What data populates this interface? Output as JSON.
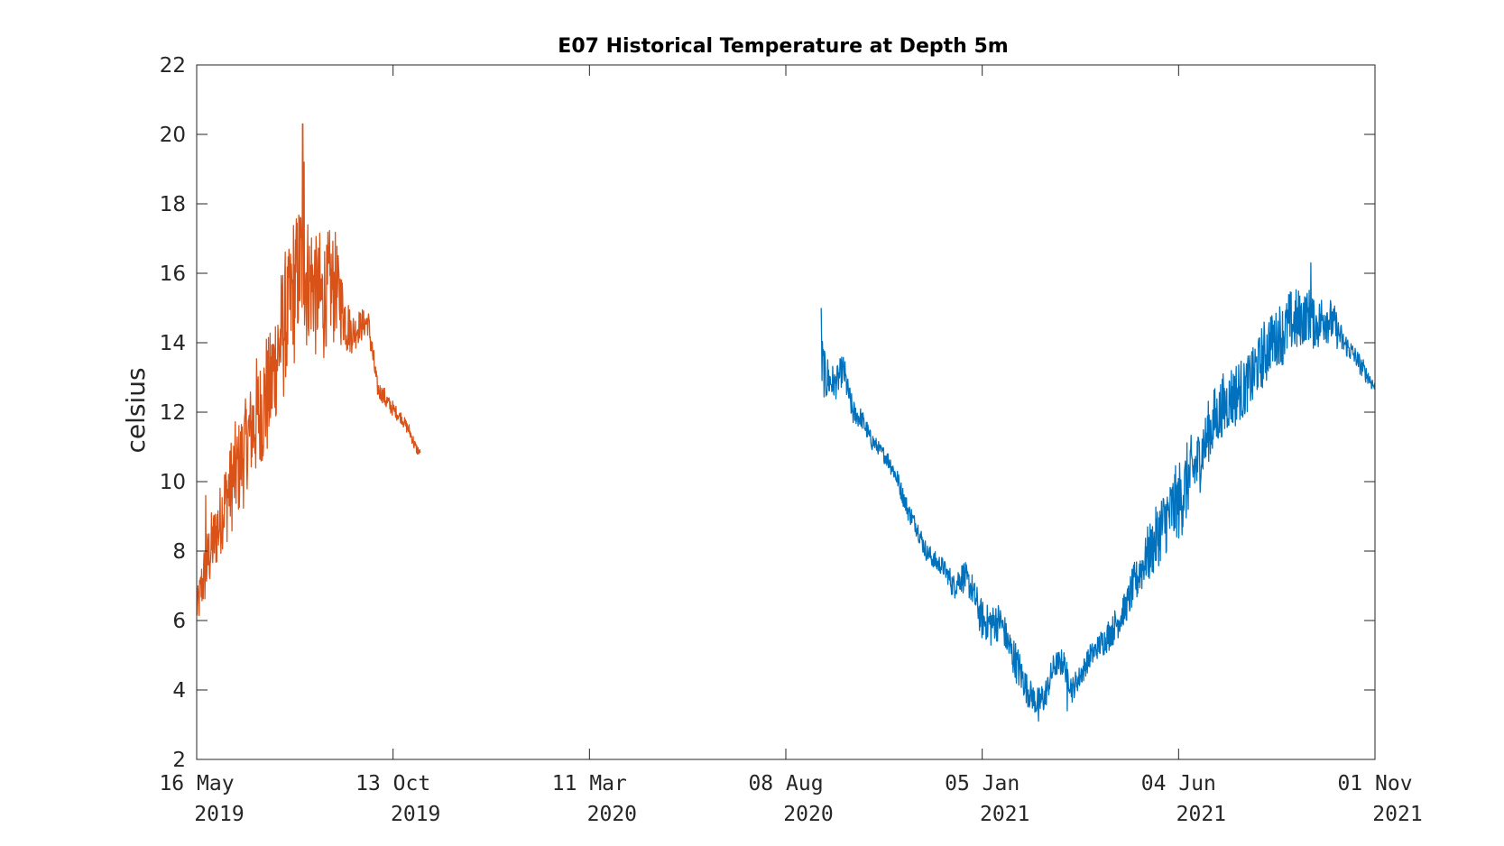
{
  "chart_data": {
    "type": "line",
    "title": "E07 Historical Temperature at Depth 5m",
    "xlabel": "",
    "ylabel": "celsius",
    "ylim": [
      2,
      22
    ],
    "yticks": [
      2,
      4,
      6,
      8,
      10,
      12,
      14,
      16,
      18,
      20,
      22
    ],
    "xlim": [
      "2019-05-16",
      "2021-11-01"
    ],
    "xticks": [
      {
        "date": "2019-05-16",
        "label_day": "16 May",
        "label_year": "2019"
      },
      {
        "date": "2019-10-13",
        "label_day": "13 Oct",
        "label_year": "2019"
      },
      {
        "date": "2020-03-11",
        "label_day": "11 Mar",
        "label_year": "2020"
      },
      {
        "date": "2020-08-08",
        "label_day": "08 Aug",
        "label_year": "2020"
      },
      {
        "date": "2021-01-05",
        "label_day": "05 Jan",
        "label_year": "2021"
      },
      {
        "date": "2021-06-04",
        "label_day": "04 Jun",
        "label_year": "2021"
      },
      {
        "date": "2021-11-01",
        "label_day": "01 Nov",
        "label_year": "2021"
      }
    ],
    "grid": false,
    "series": [
      {
        "color": "#D95319",
        "points": [
          [
            "2019-05-16",
            6.3
          ],
          [
            "2019-05-20",
            7.0
          ],
          [
            "2019-05-25",
            7.8
          ],
          [
            "2019-06-01",
            8.6
          ],
          [
            "2019-06-08",
            9.6
          ],
          [
            "2019-06-15",
            10.3
          ],
          [
            "2019-06-22",
            11.0
          ],
          [
            "2019-06-29",
            11.7
          ],
          [
            "2019-07-06",
            12.2
          ],
          [
            "2019-07-13",
            13.0
          ],
          [
            "2019-07-20",
            14.2
          ],
          [
            "2019-07-27",
            15.2
          ],
          [
            "2019-08-01",
            16.0
          ],
          [
            "2019-08-05",
            16.3
          ],
          [
            "2019-08-10",
            15.8
          ],
          [
            "2019-08-15",
            15.5
          ],
          [
            "2019-08-20",
            15.2
          ],
          [
            "2019-08-25",
            15.5
          ],
          [
            "2019-08-30",
            15.6
          ],
          [
            "2019-09-03",
            15.2
          ],
          [
            "2019-09-07",
            14.6
          ],
          [
            "2019-09-12",
            14.3
          ],
          [
            "2019-09-18",
            14.5
          ],
          [
            "2019-09-24",
            14.6
          ],
          [
            "2019-09-28",
            13.5
          ],
          [
            "2019-10-01",
            12.7
          ],
          [
            "2019-10-05",
            12.5
          ],
          [
            "2019-10-10",
            12.2
          ],
          [
            "2019-10-15",
            12.0
          ],
          [
            "2019-10-20",
            11.8
          ],
          [
            "2019-10-25",
            11.5
          ],
          [
            "2019-10-30",
            11.0
          ],
          [
            "2019-11-03",
            10.8
          ]
        ],
        "noise": [
          0.6,
          0.9,
          1.0,
          1.3,
          1.4,
          1.5,
          1.7,
          1.8,
          1.9,
          2.0,
          2.1,
          2.2,
          2.4,
          2.6,
          2.2,
          2.0,
          1.9,
          1.8,
          1.6,
          1.3,
          1.0,
          0.6,
          0.5,
          0.5,
          0.4,
          0.3,
          0.3,
          0.3,
          0.2,
          0.2,
          0.2,
          0.2,
          0.1
        ],
        "extremes": [
          [
            "2019-08-05",
            20.3
          ],
          [
            "2019-08-06",
            19.2
          ],
          [
            "2019-05-23",
            9.6
          ],
          [
            "2019-05-16",
            6.2
          ]
        ]
      },
      {
        "color": "#0072BD",
        "points": [
          [
            "2020-09-04",
            13.5
          ],
          [
            "2020-09-07",
            13.0
          ],
          [
            "2020-09-14",
            12.8
          ],
          [
            "2020-09-21",
            13.2
          ],
          [
            "2020-09-28",
            12.0
          ],
          [
            "2020-10-05",
            11.8
          ],
          [
            "2020-10-12",
            11.2
          ],
          [
            "2020-10-19",
            10.9
          ],
          [
            "2020-10-26",
            10.6
          ],
          [
            "2020-11-02",
            10.0
          ],
          [
            "2020-11-09",
            9.2
          ],
          [
            "2020-11-16",
            8.7
          ],
          [
            "2020-11-23",
            8.0
          ],
          [
            "2020-11-30",
            7.7
          ],
          [
            "2020-12-07",
            7.5
          ],
          [
            "2020-12-14",
            7.0
          ],
          [
            "2020-12-21",
            7.3
          ],
          [
            "2020-12-28",
            6.9
          ],
          [
            "2021-01-05",
            6.0
          ],
          [
            "2021-01-12",
            5.9
          ],
          [
            "2021-01-19",
            6.0
          ],
          [
            "2021-01-26",
            5.2
          ],
          [
            "2021-02-02",
            4.6
          ],
          [
            "2021-02-09",
            4.0
          ],
          [
            "2021-02-16",
            3.6
          ],
          [
            "2021-02-22",
            3.8
          ],
          [
            "2021-03-01",
            4.7
          ],
          [
            "2021-03-08",
            4.8
          ],
          [
            "2021-03-15",
            4.0
          ],
          [
            "2021-03-22",
            4.5
          ],
          [
            "2021-03-29",
            5.0
          ],
          [
            "2021-04-05",
            5.3
          ],
          [
            "2021-04-12",
            5.6
          ],
          [
            "2021-04-19",
            6.0
          ],
          [
            "2021-04-26",
            6.5
          ],
          [
            "2021-05-03",
            7.2
          ],
          [
            "2021-05-10",
            7.8
          ],
          [
            "2021-05-17",
            8.2
          ],
          [
            "2021-05-24",
            8.8
          ],
          [
            "2021-06-04",
            9.4
          ],
          [
            "2021-06-11",
            10.0
          ],
          [
            "2021-06-18",
            10.5
          ],
          [
            "2021-06-25",
            11.2
          ],
          [
            "2021-07-02",
            11.8
          ],
          [
            "2021-07-09",
            12.2
          ],
          [
            "2021-07-16",
            12.5
          ],
          [
            "2021-07-23",
            12.6
          ],
          [
            "2021-07-30",
            13.0
          ],
          [
            "2021-08-06",
            13.5
          ],
          [
            "2021-08-13",
            14.0
          ],
          [
            "2021-08-20",
            14.2
          ],
          [
            "2021-08-27",
            14.5
          ],
          [
            "2021-09-03",
            14.6
          ],
          [
            "2021-09-10",
            14.8
          ],
          [
            "2021-09-17",
            14.5
          ],
          [
            "2021-09-24",
            14.8
          ],
          [
            "2021-10-01",
            14.5
          ],
          [
            "2021-10-08",
            14.0
          ],
          [
            "2021-10-15",
            13.7
          ],
          [
            "2021-10-22",
            13.3
          ],
          [
            "2021-11-01",
            12.7
          ]
        ],
        "noise": [
          1.2,
          0.8,
          0.5,
          0.5,
          0.4,
          0.3,
          0.3,
          0.2,
          0.3,
          0.3,
          0.3,
          0.3,
          0.3,
          0.3,
          0.3,
          0.4,
          0.5,
          0.5,
          0.6,
          0.7,
          0.5,
          0.6,
          0.6,
          0.5,
          0.5,
          0.5,
          0.4,
          0.4,
          0.4,
          0.4,
          0.4,
          0.4,
          0.5,
          0.5,
          0.6,
          0.7,
          0.8,
          1.0,
          1.2,
          1.2,
          1.2,
          1.1,
          1.0,
          1.0,
          1.0,
          1.0,
          1.0,
          1.0,
          1.0,
          1.0,
          1.0,
          1.0,
          1.0,
          0.9,
          0.8,
          0.8,
          0.6,
          0.4,
          0.3,
          0.3,
          0.2
        ],
        "extremes": [
          [
            "2020-09-04",
            15.0
          ],
          [
            "2021-09-13",
            16.3
          ],
          [
            "2021-02-17",
            3.1
          ],
          [
            "2021-03-11",
            3.4
          ]
        ]
      }
    ]
  }
}
